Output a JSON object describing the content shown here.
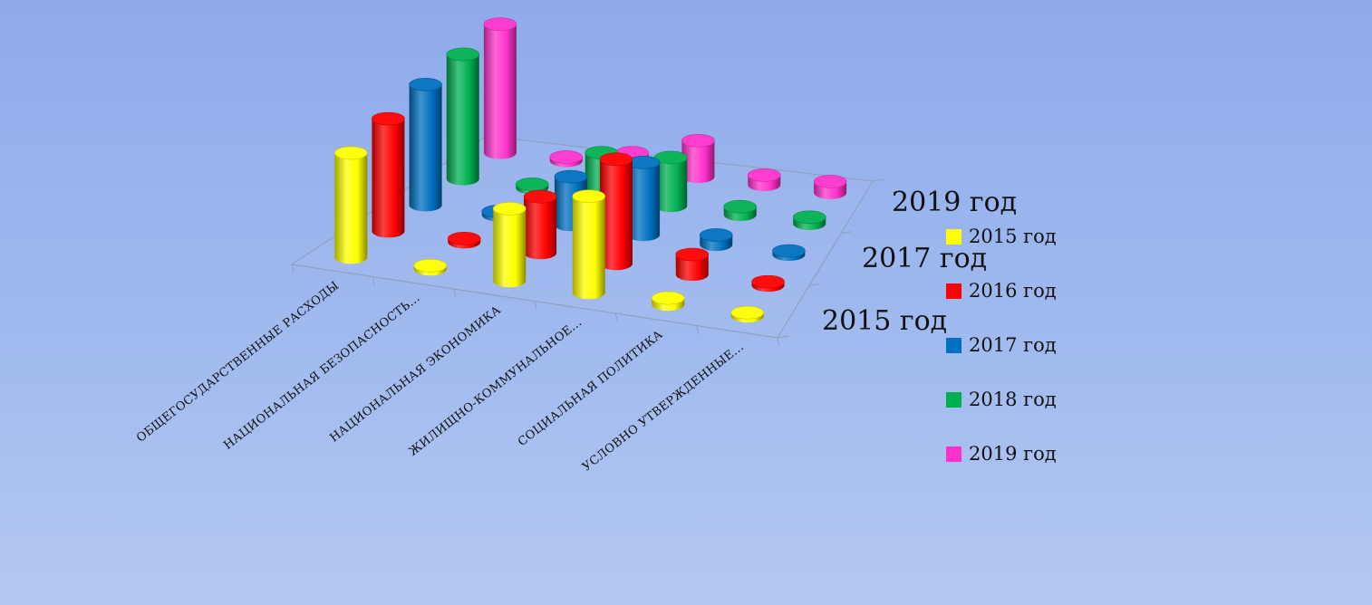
{
  "chart_data": {
    "type": "bar",
    "categories": [
      "ОБЩЕГОСУДАРСТВЕННЫЕ РАСХОДЫ",
      "НАЦИОНАЛЬНАЯ БЕЗОПАСНОСТЬ...",
      "НАЦИОНАЛЬНАЯ ЭКОНОМИКА",
      "ЖИЛИЩНО-КОММУНАЛЬНОЕ...",
      "СОЦИАЛЬНАЯ ПОЛИТИКА",
      "УСЛОВНО УТВЕРЖДЕННЫЕ..."
    ],
    "depth_labels": [
      "2015 год",
      "2017 год",
      "2019 год"
    ],
    "series": [
      {
        "name": "2015 год",
        "color": "#ffff00",
        "values": [
          130,
          2,
          90,
          120,
          8,
          2
        ]
      },
      {
        "name": "2016 год",
        "color": "#ff0000",
        "values": [
          140,
          2,
          70,
          130,
          25,
          2
        ]
      },
      {
        "name": "2017 год",
        "color": "#0070c0",
        "values": [
          150,
          2,
          60,
          90,
          12,
          2
        ]
      },
      {
        "name": "2018 год",
        "color": "#00b050",
        "values": [
          155,
          4,
          55,
          60,
          10,
          8
        ]
      },
      {
        "name": "2019 год",
        "color": "#ff33cc",
        "values": [
          160,
          4,
          20,
          45,
          12,
          14
        ]
      }
    ],
    "ylim": [
      0,
      160
    ],
    "grid": false,
    "legend_position": "right"
  }
}
